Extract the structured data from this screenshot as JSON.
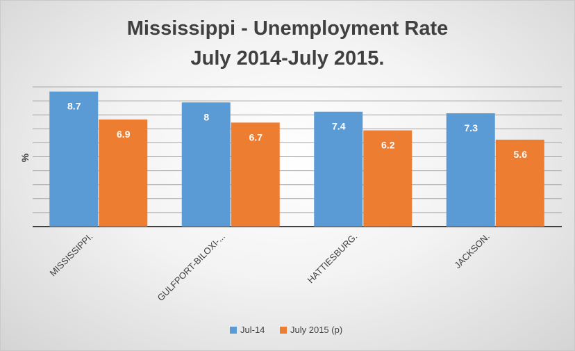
{
  "chart_data": {
    "type": "bar",
    "title": "Mississippi - Unemployment Rate",
    "subtitle": "July 2014-July 2015.",
    "ylabel": "%",
    "xlabel": "",
    "categories": [
      "MISSISSIPPI.",
      "GULFPORT-BILOXI-...",
      "HATTIESBURG.",
      "JACKSON."
    ],
    "series": [
      {
        "name": "Jul-14",
        "values": [
          8.7,
          8,
          7.4,
          7.3
        ],
        "color": "#5b9bd5"
      },
      {
        "name": "July 2015 (p)",
        "values": [
          6.9,
          6.7,
          6.2,
          5.6
        ],
        "color": "#ed7d31"
      }
    ],
    "ylim": [
      0,
      9
    ],
    "grid": true,
    "legend_position": "bottom"
  }
}
